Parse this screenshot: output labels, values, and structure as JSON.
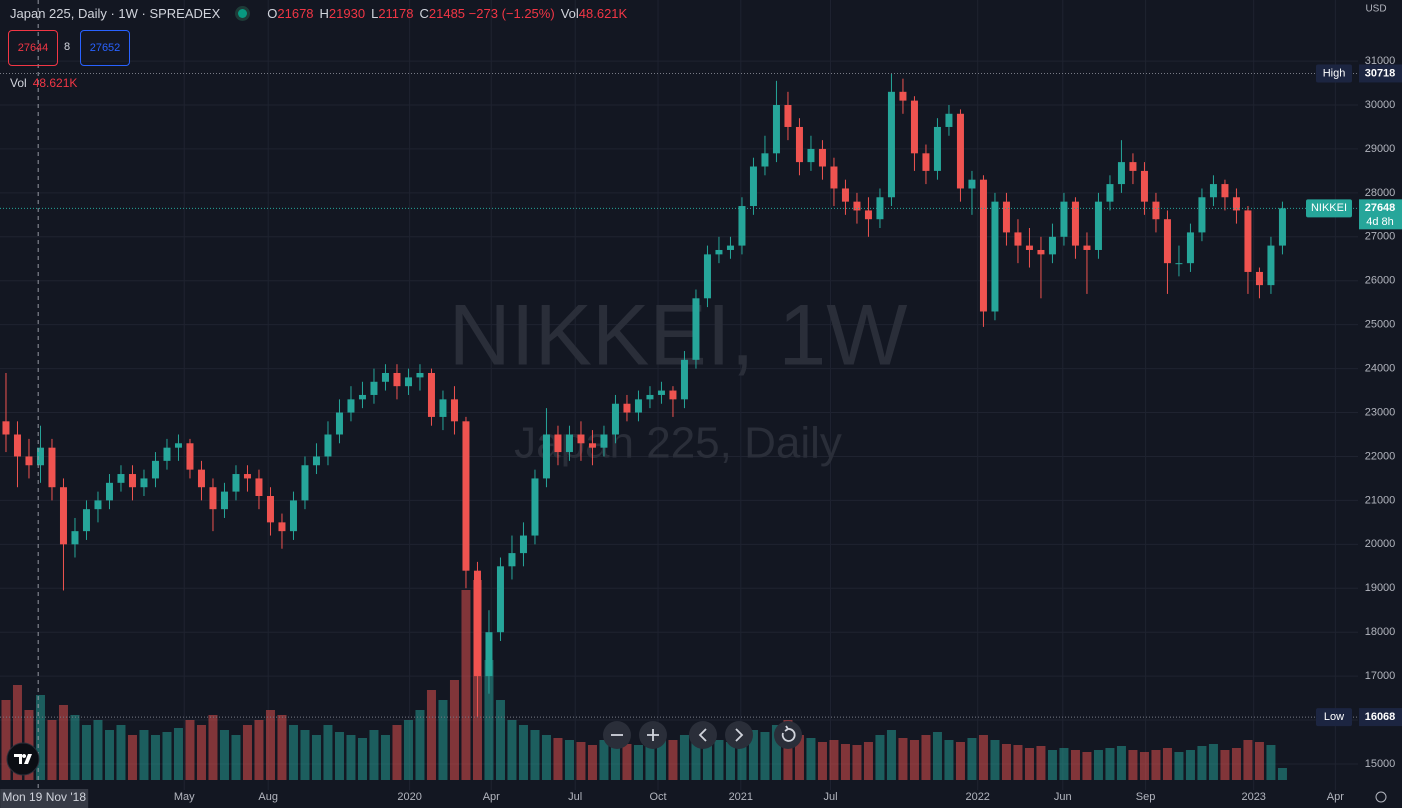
{
  "header": {
    "symbol": "Japan 225, Daily · 1W · SPREADEX",
    "legend": [
      {
        "key": "O",
        "value": "21678"
      },
      {
        "key": "H",
        "value": "21930"
      },
      {
        "key": "L",
        "value": "21178"
      },
      {
        "key": "C",
        "value": "21485"
      },
      {
        "value": "−273 (−1.25%)"
      },
      {
        "key": "Vol",
        "value": "48.621K"
      }
    ]
  },
  "trade": {
    "sell": "27644",
    "spread": "8",
    "buy": "27652"
  },
  "volume_legend": {
    "label": "Vol",
    "value": "48.621K"
  },
  "watermark": {
    "title": "NIKKEI, 1W",
    "subtitle": "Japan 225, Daily"
  },
  "currency": "USD",
  "chart_data": {
    "type": "candlestick",
    "open": [
      22800,
      22500,
      22000,
      21800,
      22200,
      21300,
      20000,
      20300,
      20800,
      21000,
      21400,
      21600,
      21300,
      21500,
      21900,
      22200,
      22300,
      21700,
      21300,
      20800,
      21200,
      21600,
      21500,
      21100,
      20500,
      20300,
      21000,
      21800,
      22000,
      22500,
      23000,
      23300,
      23400,
      23700,
      23900,
      23600,
      23800,
      23900,
      22900,
      23300,
      22800,
      19400,
      17000,
      18000,
      19500,
      19800,
      20200,
      21500,
      22500,
      22100,
      22500,
      22300,
      22200,
      22500,
      23200,
      23000,
      23300,
      23400,
      23500,
      23300,
      24200,
      25600,
      26600,
      26700,
      26800,
      27700,
      28600,
      28900,
      30000,
      29500,
      28700,
      29000,
      28600,
      28100,
      27800,
      27600,
      27400,
      27900,
      30300,
      30100,
      28900,
      28500,
      29500,
      29800,
      28100,
      28300,
      25300,
      27800,
      27100,
      26800,
      26700,
      26600,
      27000,
      27800,
      26800,
      26700,
      27800,
      28200,
      28700,
      28500,
      27800,
      27400,
      26400,
      26400,
      27100,
      27900,
      28200,
      27900,
      27600,
      26200,
      25900,
      26800
    ],
    "high": [
      23900,
      22800,
      22400,
      22700,
      22400,
      21500,
      20600,
      21000,
      21200,
      21600,
      21800,
      21800,
      21700,
      22100,
      22400,
      22500,
      22400,
      21900,
      21500,
      21400,
      21800,
      21800,
      21700,
      21300,
      20700,
      21200,
      22000,
      22300,
      22800,
      23300,
      23600,
      23700,
      24000,
      24100,
      24100,
      24000,
      24100,
      24000,
      23500,
      23600,
      22900,
      19600,
      18500,
      19700,
      20200,
      20500,
      21700,
      23100,
      22700,
      22700,
      22800,
      22600,
      22700,
      23400,
      23400,
      23500,
      23600,
      23700,
      23600,
      24400,
      25800,
      26800,
      27000,
      27000,
      27900,
      28800,
      29300,
      30550,
      30300,
      29700,
      29300,
      29200,
      28800,
      28300,
      28000,
      27900,
      28100,
      30718,
      30600,
      30200,
      29100,
      29700,
      30000,
      29900,
      28500,
      28400,
      28000,
      28000,
      27400,
      27200,
      27000,
      27300,
      28000,
      27900,
      27100,
      28000,
      28400,
      29200,
      28900,
      28700,
      28000,
      27600,
      26800,
      27300,
      28100,
      28400,
      28300,
      28100,
      27700,
      26300,
      27000,
      27800
    ],
    "low": [
      22100,
      21300,
      21500,
      21400,
      21000,
      18950,
      19700,
      20100,
      20500,
      20800,
      21200,
      21000,
      21100,
      21300,
      21700,
      21900,
      21500,
      21000,
      20300,
      20600,
      21000,
      21200,
      20800,
      20200,
      19900,
      20100,
      20800,
      21600,
      21800,
      22300,
      22800,
      23100,
      23200,
      23500,
      23300,
      23400,
      23500,
      22700,
      22600,
      22500,
      19000,
      16068,
      16600,
      17800,
      19200,
      19500,
      20000,
      21300,
      21800,
      21900,
      21900,
      21800,
      22000,
      22300,
      22800,
      22800,
      23100,
      23200,
      22900,
      23100,
      24000,
      25400,
      26400,
      26500,
      26600,
      27500,
      28400,
      28700,
      29200,
      28400,
      28500,
      28300,
      27700,
      27500,
      27300,
      27000,
      27200,
      27700,
      29800,
      28500,
      28200,
      28300,
      29300,
      27800,
      27500,
      24950,
      25100,
      26800,
      26400,
      26300,
      25600,
      26400,
      26800,
      26500,
      25700,
      26500,
      27600,
      28000,
      28200,
      27500,
      27100,
      25700,
      26100,
      26200,
      26900,
      27700,
      27600,
      27300,
      25700,
      25600,
      25700,
      26600
    ],
    "close": [
      22500,
      22000,
      21800,
      22200,
      21300,
      20000,
      20300,
      20800,
      21000,
      21400,
      21600,
      21300,
      21500,
      21900,
      22200,
      22300,
      21700,
      21300,
      20800,
      21200,
      21600,
      21500,
      21100,
      20500,
      20300,
      21000,
      21800,
      22000,
      22500,
      23000,
      23300,
      23400,
      23700,
      23900,
      23600,
      23800,
      23900,
      22900,
      23300,
      22800,
      19400,
      17000,
      18000,
      19500,
      19800,
      20200,
      21500,
      22500,
      22100,
      22500,
      22300,
      22200,
      22500,
      23200,
      23000,
      23300,
      23400,
      23500,
      23300,
      24200,
      25600,
      26600,
      26700,
      26800,
      27700,
      28600,
      28900,
      30000,
      29500,
      28700,
      29000,
      28600,
      28100,
      27800,
      27600,
      27400,
      27900,
      30300,
      30100,
      28900,
      28500,
      29500,
      29800,
      28100,
      28300,
      25300,
      27800,
      27100,
      26800,
      26700,
      26600,
      27000,
      27800,
      26800,
      26700,
      27800,
      28200,
      28700,
      28500,
      27800,
      27400,
      26400,
      26400,
      27100,
      27900,
      28200,
      27900,
      27600,
      26200,
      25900,
      26800,
      27648
    ],
    "volume": [
      80,
      95,
      70,
      85,
      60,
      75,
      65,
      55,
      60,
      50,
      55,
      45,
      50,
      45,
      48,
      52,
      60,
      55,
      65,
      50,
      45,
      55,
      60,
      70,
      65,
      55,
      50,
      45,
      55,
      48,
      45,
      42,
      50,
      45,
      55,
      60,
      70,
      90,
      80,
      100,
      190,
      200,
      120,
      80,
      60,
      55,
      50,
      45,
      42,
      40,
      38,
      35,
      40,
      38,
      36,
      35,
      38,
      42,
      40,
      45,
      50,
      42,
      40,
      38,
      45,
      50,
      48,
      55,
      60,
      45,
      42,
      38,
      40,
      36,
      35,
      38,
      45,
      50,
      42,
      40,
      45,
      48,
      40,
      38,
      42,
      45,
      40,
      36,
      35,
      32,
      34,
      30,
      32,
      30,
      28,
      30,
      32,
      34,
      30,
      28,
      30,
      32,
      28,
      30,
      34,
      36,
      30,
      32,
      40,
      38,
      35,
      12
    ],
    "up_color": "#26a69a",
    "down_color": "#ef5350",
    "ylim": [
      14408,
      32390
    ],
    "yticks": [
      15000,
      16000,
      17000,
      18000,
      19000,
      20000,
      21000,
      22000,
      23000,
      24000,
      25000,
      26000,
      27000,
      28000,
      29000,
      30000,
      31000
    ],
    "xlim": [
      -0.52,
      117.57
    ],
    "xticks": [
      {
        "value": 15.5,
        "label": "May"
      },
      {
        "value": 22.8,
        "label": "Aug"
      },
      {
        "value": 35.1,
        "label": "2020"
      },
      {
        "value": 42.2,
        "label": "Apr"
      },
      {
        "value": 49.5,
        "label": "Jul"
      },
      {
        "value": 56.7,
        "label": "Oct"
      },
      {
        "value": 63.9,
        "label": "2021"
      },
      {
        "value": 71.7,
        "label": "Jul"
      },
      {
        "value": 84.5,
        "label": "2022"
      },
      {
        "value": 91.9,
        "label": "Jun"
      },
      {
        "value": 99.1,
        "label": "Sep"
      },
      {
        "value": 108.5,
        "label": "2023"
      },
      {
        "value": 115.6,
        "label": "Apr"
      }
    ],
    "grid": true,
    "high_marker": {
      "label": "High",
      "value": 30718
    },
    "low_marker": {
      "label": "Low",
      "value": 16068
    },
    "last_price": {
      "label": "NIKKEI",
      "value": 27648,
      "countdown": "4d 8h"
    },
    "crosshair": {
      "x": 2.8,
      "label": "Mon 19 Nov '18"
    }
  }
}
